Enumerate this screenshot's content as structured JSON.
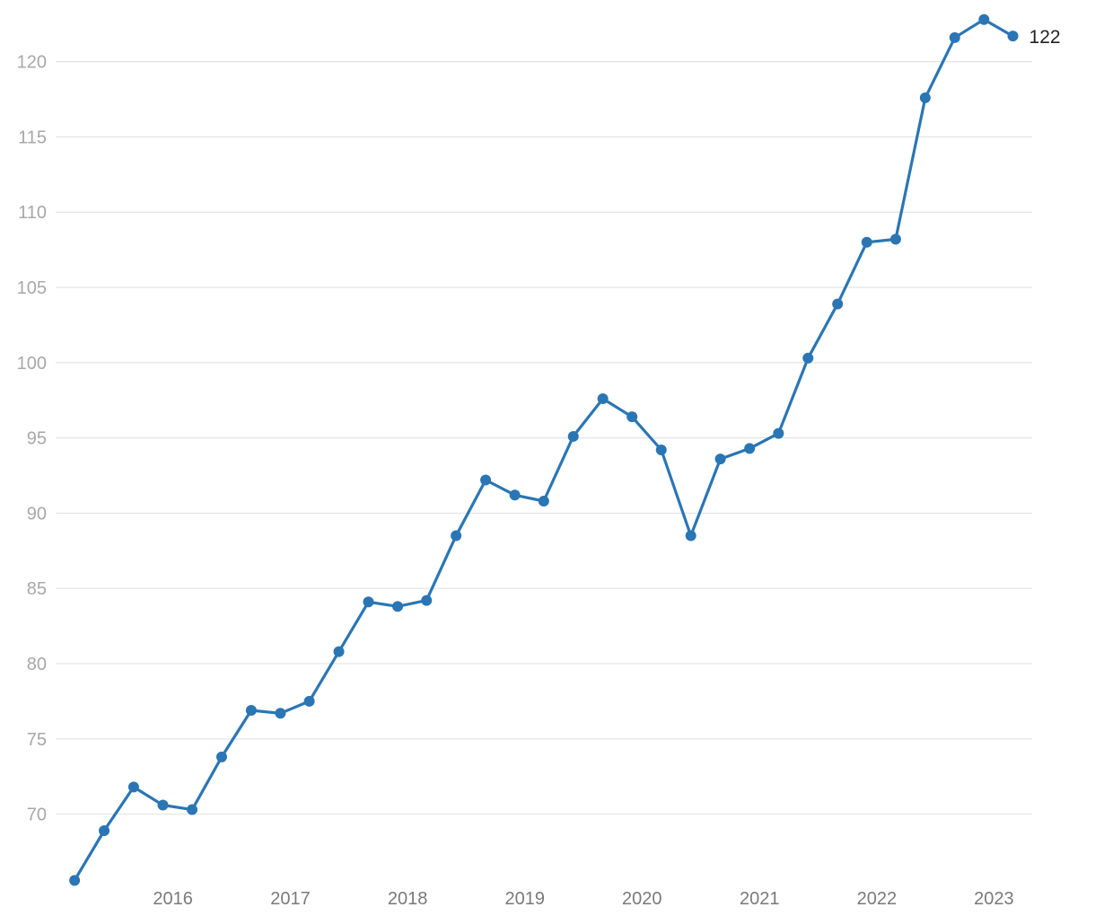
{
  "chart_data": {
    "type": "line",
    "title": "",
    "xlabel": "",
    "ylabel": "",
    "grid": true,
    "legend": "none",
    "colors": {
      "series": "#2a76b4",
      "grid": "#e3e3e3",
      "tick_y": "#a8a8a8",
      "tick_x": "#7a7a7a",
      "end_label": "#222222"
    },
    "ylim": [
      65.5,
      123.5
    ],
    "y_ticks": [
      70,
      75,
      80,
      85,
      90,
      95,
      100,
      105,
      110,
      115,
      120
    ],
    "y_tick_labels": [
      "70",
      "75",
      "80",
      "85",
      "90",
      "95",
      "100",
      "105",
      "110",
      "115",
      "120"
    ],
    "xlim": [
      "2015-01-01",
      "2023-04-30"
    ],
    "x_ticks": [
      "2016-01-01",
      "2017-01-01",
      "2018-01-01",
      "2019-01-01",
      "2020-01-01",
      "2021-01-01",
      "2022-01-01",
      "2023-01-01"
    ],
    "x_tick_labels": [
      "2016",
      "2017",
      "2018",
      "2019",
      "2020",
      "2021",
      "2022",
      "2023"
    ],
    "series": [
      {
        "color": "#2a76b4",
        "x": [
          "2015-03-01",
          "2015-06-01",
          "2015-09-01",
          "2015-12-01",
          "2016-03-01",
          "2016-06-01",
          "2016-09-01",
          "2016-12-01",
          "2017-03-01",
          "2017-06-01",
          "2017-09-01",
          "2017-12-01",
          "2018-03-01",
          "2018-06-01",
          "2018-09-01",
          "2018-12-01",
          "2019-03-01",
          "2019-06-01",
          "2019-09-01",
          "2019-12-01",
          "2020-03-01",
          "2020-06-01",
          "2020-09-01",
          "2020-12-01",
          "2021-03-01",
          "2021-06-01",
          "2021-09-01",
          "2021-12-01",
          "2022-03-01",
          "2022-06-01",
          "2022-09-01",
          "2022-12-01",
          "2023-03-01"
        ],
        "values": [
          65.6,
          68.9,
          71.8,
          70.6,
          70.3,
          73.8,
          76.9,
          76.7,
          77.5,
          80.8,
          84.1,
          83.8,
          84.2,
          88.5,
          92.2,
          91.2,
          90.8,
          95.1,
          97.6,
          96.4,
          94.2,
          88.5,
          93.6,
          94.3,
          95.3,
          100.3,
          103.9,
          108.0,
          108.2,
          117.6,
          121.6,
          122.8,
          121.7
        ]
      }
    ],
    "end_label": "122"
  }
}
